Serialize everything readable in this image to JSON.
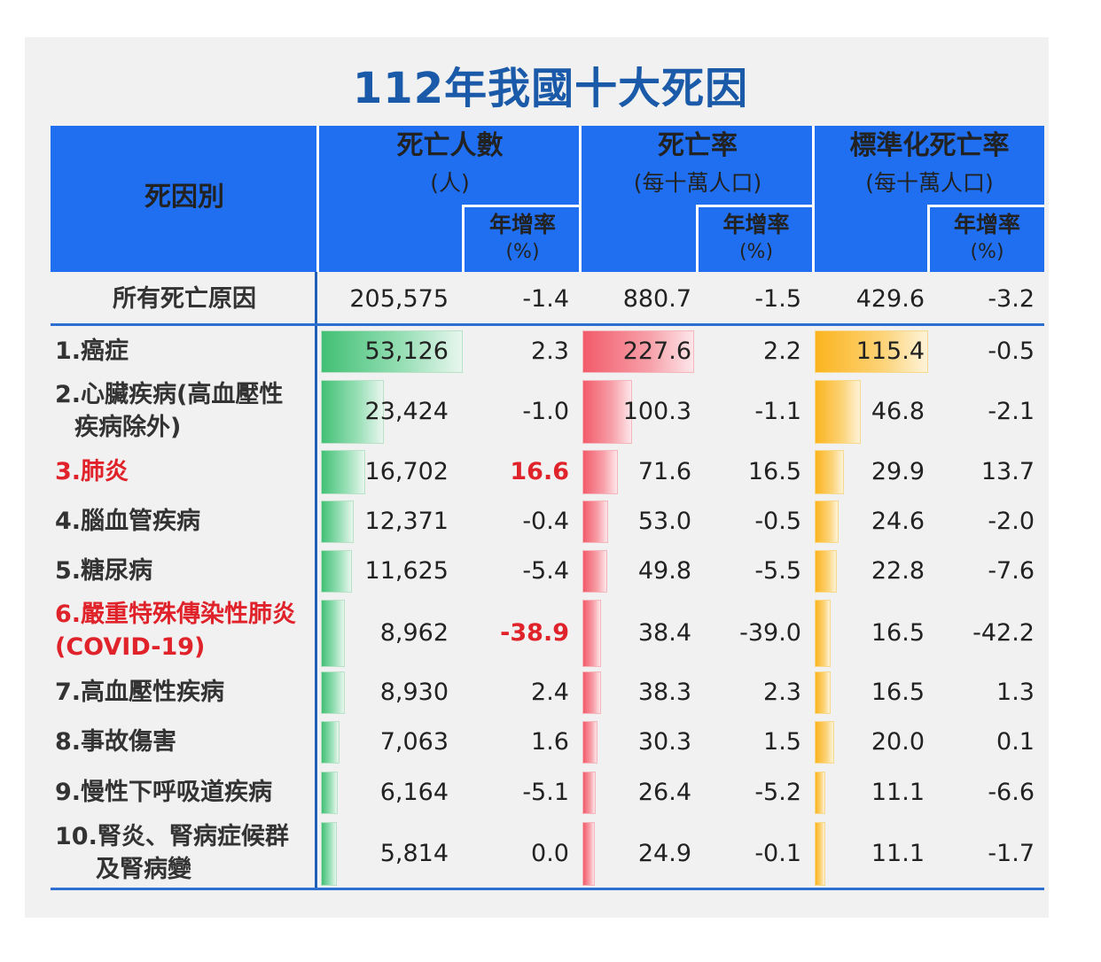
{
  "title": "112年我國十大死因",
  "header": {
    "cause": "死因別",
    "deaths": {
      "title": "死亡人數",
      "unit": "(人)",
      "growth": "年增率",
      "growth_unit": "(%)"
    },
    "rate": {
      "title": "死亡率",
      "unit": "(每十萬人口)",
      "growth": "年增率",
      "growth_unit": "(%)"
    },
    "std_rate": {
      "title": "標準化死亡率",
      "unit": "(每十萬人口)",
      "growth": "年增率",
      "growth_unit": "(%)"
    }
  },
  "total": {
    "label": "所有死亡原因",
    "deaths": "205,575",
    "deaths_growth": "-1.4",
    "rate": "880.7",
    "rate_growth": "-1.5",
    "std_rate": "429.6",
    "std_growth": "-3.2"
  },
  "colors": {
    "header": "#1f6ff0",
    "title": "#1a5aa8",
    "highlight": "#e0222a",
    "deaths_bar": "#42c075",
    "rate_bar": "#f25b6a",
    "std_bar": "#fbb41f"
  },
  "chart_data": {
    "type": "table",
    "title": "112年我國十大死因",
    "columns": [
      "死因別",
      "死亡人數(人)",
      "年增率(%)",
      "死亡率(每十萬人口)",
      "年增率(%)",
      "標準化死亡率(每十萬人口)",
      "年增率(%)"
    ],
    "rows": [
      {
        "label1": "1.癌症",
        "label2": "",
        "highlight": false,
        "deaths": 53126,
        "deaths_text": "53,126",
        "deaths_growth": "2.3",
        "rate": 227.6,
        "rate_text": "227.6",
        "rate_growth": "2.2",
        "std_rate": 115.4,
        "std_text": "115.4",
        "std_growth": "-0.5"
      },
      {
        "label1": "2.心臟疾病(高血壓性",
        "label2": "疾病除外)",
        "highlight": false,
        "deaths": 23424,
        "deaths_text": "23,424",
        "deaths_growth": "-1.0",
        "rate": 100.3,
        "rate_text": "100.3",
        "rate_growth": "-1.1",
        "std_rate": 46.8,
        "std_text": "46.8",
        "std_growth": "-2.1"
      },
      {
        "label1": "3.肺炎",
        "label2": "",
        "highlight": true,
        "deaths": 16702,
        "deaths_text": "16,702",
        "deaths_growth": "16.6",
        "rate": 71.6,
        "rate_text": "71.6",
        "rate_growth": "16.5",
        "std_rate": 29.9,
        "std_text": "29.9",
        "std_growth": "13.7"
      },
      {
        "label1": "4.腦血管疾病",
        "label2": "",
        "highlight": false,
        "deaths": 12371,
        "deaths_text": "12,371",
        "deaths_growth": "-0.4",
        "rate": 53.0,
        "rate_text": "53.0",
        "rate_growth": "-0.5",
        "std_rate": 24.6,
        "std_text": "24.6",
        "std_growth": "-2.0"
      },
      {
        "label1": "5.糖尿病",
        "label2": "",
        "highlight": false,
        "deaths": 11625,
        "deaths_text": "11,625",
        "deaths_growth": "-5.4",
        "rate": 49.8,
        "rate_text": "49.8",
        "rate_growth": "-5.5",
        "std_rate": 22.8,
        "std_text": "22.8",
        "std_growth": "-7.6"
      },
      {
        "label1": "6.嚴重特殊傳染性肺炎",
        "label2": "(COVID-19)",
        "highlight": true,
        "deaths": 8962,
        "deaths_text": "8,962",
        "deaths_growth": "-38.9",
        "rate": 38.4,
        "rate_text": "38.4",
        "rate_growth": "-39.0",
        "std_rate": 16.5,
        "std_text": "16.5",
        "std_growth": "-42.2"
      },
      {
        "label1": "7.高血壓性疾病",
        "label2": "",
        "highlight": false,
        "deaths": 8930,
        "deaths_text": "8,930",
        "deaths_growth": "2.4",
        "rate": 38.3,
        "rate_text": "38.3",
        "rate_growth": "2.3",
        "std_rate": 16.5,
        "std_text": "16.5",
        "std_growth": "1.3"
      },
      {
        "label1": "8.事故傷害",
        "label2": "",
        "highlight": false,
        "deaths": 7063,
        "deaths_text": "7,063",
        "deaths_growth": "1.6",
        "rate": 30.3,
        "rate_text": "30.3",
        "rate_growth": "1.5",
        "std_rate": 20.0,
        "std_text": "20.0",
        "std_growth": "0.1"
      },
      {
        "label1": "9.慢性下呼吸道疾病",
        "label2": "",
        "highlight": false,
        "deaths": 6164,
        "deaths_text": "6,164",
        "deaths_growth": "-5.1",
        "rate": 26.4,
        "rate_text": "26.4",
        "rate_growth": "-5.2",
        "std_rate": 11.1,
        "std_text": "11.1",
        "std_growth": "-6.6"
      },
      {
        "label1": "10.腎炎、腎病症候群",
        "label2": "及腎病變",
        "highlight": false,
        "deaths": 5814,
        "deaths_text": "5,814",
        "deaths_growth": "0.0",
        "rate": 24.9,
        "rate_text": "24.9",
        "rate_growth": "-0.1",
        "std_rate": 11.1,
        "std_text": "11.1",
        "std_growth": "-1.7"
      }
    ]
  }
}
